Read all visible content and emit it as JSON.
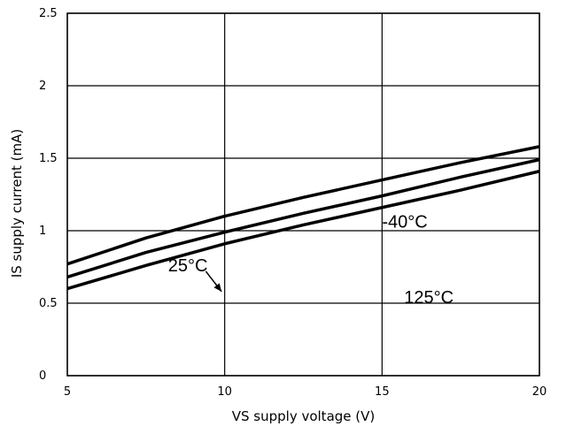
{
  "chart_data": {
    "type": "line",
    "title": "",
    "xlabel": "VS supply voltage (V)",
    "ylabel": "IS supply current (mA)",
    "xlim": [
      5,
      20
    ],
    "ylim": [
      0,
      2.5
    ],
    "x_ticks": [
      "5",
      "10",
      "15",
      "20"
    ],
    "y_ticks": [
      "0",
      "0.5",
      "1",
      "1.5",
      "2",
      "2.5"
    ],
    "grid": true,
    "line_color": "#000000",
    "series": [
      {
        "x": [
          5,
          7.5,
          10,
          12.5,
          15,
          17.5,
          20
        ],
        "y": [
          0.77,
          0.95,
          1.1,
          1.23,
          1.35,
          1.47,
          1.58
        ]
      },
      {
        "x": [
          5,
          7.5,
          10,
          12.5,
          15,
          17.5,
          20
        ],
        "y": [
          0.68,
          0.85,
          0.99,
          1.12,
          1.24,
          1.37,
          1.49
        ]
      },
      {
        "x": [
          5,
          7.5,
          10,
          12.5,
          15,
          17.5,
          20
        ],
        "y": [
          0.6,
          0.76,
          0.91,
          1.04,
          1.16,
          1.28,
          1.41
        ]
      }
    ],
    "annotations": [
      {
        "text": "-40°C",
        "x": 15.0,
        "y": 1.02
      },
      {
        "text": "25°C",
        "x": 8.2,
        "y": 0.72
      },
      {
        "text": "125°C",
        "x": 15.7,
        "y": 0.5
      }
    ]
  }
}
